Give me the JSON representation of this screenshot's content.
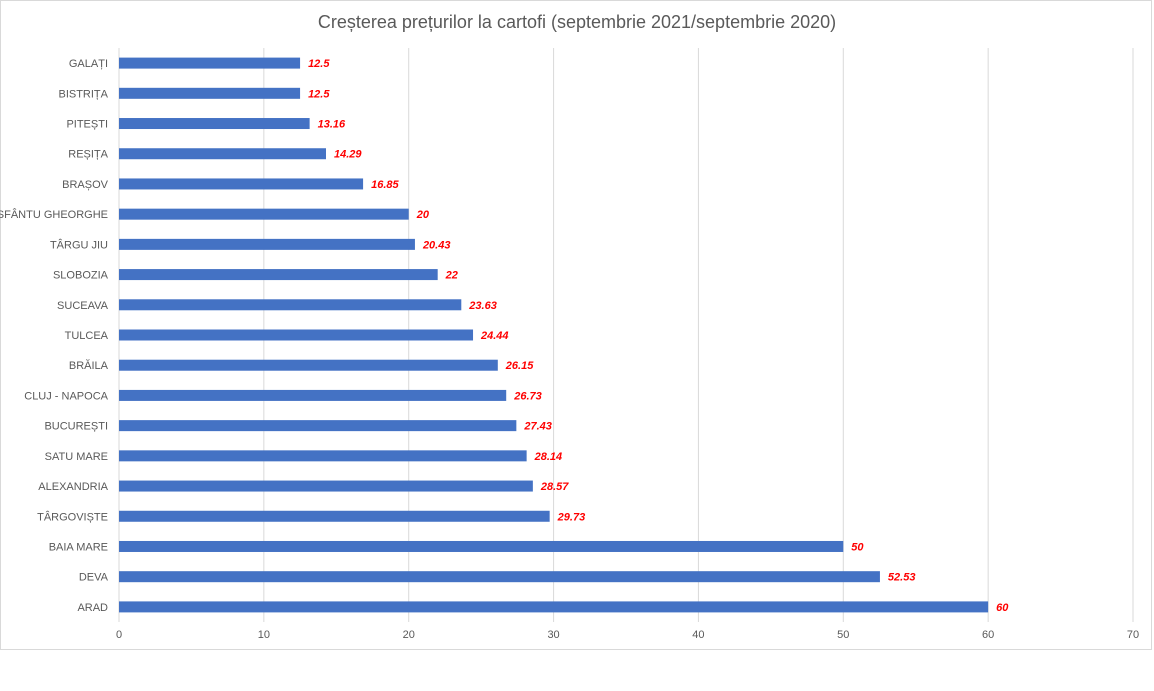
{
  "chart_data": {
    "type": "bar",
    "orientation": "horizontal",
    "title": "Creșterea prețurilor la cartofi (septembrie 2021/septembrie 2020)",
    "xlabel": "",
    "ylabel": "",
    "xlim": [
      0,
      70
    ],
    "x_ticks": [
      "0",
      "10",
      "20",
      "30",
      "40",
      "50",
      "60",
      "70"
    ],
    "grid": "vertical",
    "categories": [
      "GALAȚI",
      "BISTRIȚA",
      "PITEȘTI",
      "REȘIȚA",
      "BRAȘOV",
      "SFÂNTU GHEORGHE",
      "TÂRGU JIU",
      "SLOBOZIA",
      "SUCEAVA",
      "TULCEA",
      "BRĂILA",
      "CLUJ - NAPOCA",
      "BUCUREȘTI",
      "SATU MARE",
      "ALEXANDRIA",
      "TÂRGOVIȘTE",
      "BAIA MARE",
      "DEVA",
      "ARAD"
    ],
    "values": [
      12.5,
      12.5,
      13.16,
      14.29,
      16.85,
      20,
      20.43,
      22,
      23.63,
      24.44,
      26.15,
      26.73,
      27.43,
      28.14,
      28.57,
      29.73,
      50,
      52.53,
      60
    ],
    "data_labels": [
      "12.5",
      "12.5",
      "13.16",
      "14.29",
      "16.85",
      "20",
      "20.43",
      "22",
      "23.63",
      "24.44",
      "26.15",
      "26.73",
      "27.43",
      "28.14",
      "28.57",
      "29.73",
      "50",
      "52.53",
      "60"
    ],
    "bar_color": "#4472c4",
    "label_color": "#ff0000",
    "grid_color": "#d9d9d9"
  }
}
